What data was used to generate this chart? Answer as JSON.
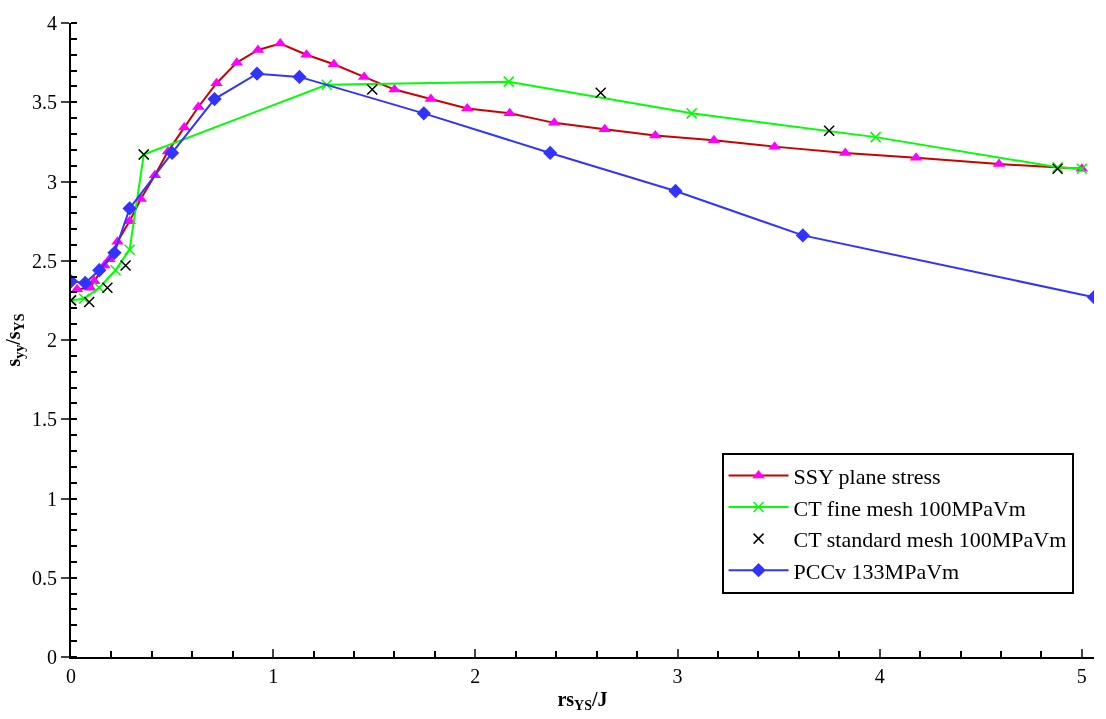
{
  "chart_data": {
    "type": "line",
    "xlabel": "rs$_{YS}$/J",
    "ylabel": "s$_{yy}$/s$_{YS}$",
    "xlim": [
      0,
      5.06
    ],
    "xticks": [
      0,
      1,
      2,
      3,
      4,
      5
    ],
    "ylim": [
      0,
      4
    ],
    "yticks": [
      0,
      0.5,
      1,
      1.5,
      2,
      2.5,
      3,
      3.5,
      4
    ],
    "legend": "bottom right",
    "series": [
      {
        "name": "SSY plane stress",
        "color": "#cc0000",
        "colors": [
          "#ff00ff",
          "#ff00ff",
          "#ff00ff",
          "#ff00ff",
          "#ff00ff",
          "#ff00ff",
          "#ff00ff",
          "#ff00ff",
          "#ff00ff",
          "#ff00ff",
          "#ff00ff",
          "#ff00ff",
          "#ff00ff",
          "#ff00ff",
          "#ff00ff",
          "#ff00ff",
          "#ff00ff",
          "#ff00ff",
          "#ff00ff",
          "#ff00ff",
          "#ff00ff",
          "#ff00ff",
          "#ff00ff",
          "#ff00ff",
          "#ff00ff",
          "#ff00ff",
          "#ff00ff",
          "#ff00ff",
          "#ff00ff",
          "#ff00ff",
          "#ff00ff",
          "#ff00ff"
        ],
        "marker": "triangle",
        "x": [
          0.03,
          0.095,
          0.115,
          0.165,
          0.19,
          0.23,
          0.29,
          0.345,
          0.415,
          0.48,
          0.56,
          0.63,
          0.72,
          0.82,
          0.925,
          1.035,
          1.165,
          1.3,
          1.45,
          1.6,
          1.78,
          1.96,
          2.17,
          2.39,
          2.64,
          2.89,
          3.18,
          3.48,
          3.83,
          4.18,
          4.59,
          5.0
        ],
        "values": [
          2.32,
          2.33,
          2.37,
          2.47,
          2.51,
          2.62,
          2.75,
          2.89,
          3.04,
          3.19,
          3.34,
          3.47,
          3.62,
          3.75,
          3.83,
          3.87,
          3.8,
          3.74,
          3.66,
          3.58,
          3.52,
          3.46,
          3.43,
          3.37,
          3.33,
          3.29,
          3.26,
          3.22,
          3.18,
          3.15,
          3.11,
          3.08
        ]
      },
      {
        "name": "CT fine mesh 100MPaVm",
        "color": "#00ff00",
        "marker": "cross",
        "x": [
          0.0,
          0.065,
          0.14,
          0.22,
          0.29,
          0.36,
          1.265,
          2.165,
          3.07,
          3.98,
          4.88,
          5.0
        ],
        "values": [
          2.25,
          2.26,
          2.33,
          2.44,
          2.57,
          3.17,
          3.61,
          3.63,
          3.43,
          3.28,
          3.09,
          3.08
        ]
      },
      {
        "name": "CT standard mesh 100MPaVm",
        "color": "#000000",
        "marker": "cross",
        "type": "scatter",
        "x": [
          0.0,
          0.09,
          0.18,
          0.27,
          0.36,
          1.49,
          2.62,
          3.75,
          4.88
        ],
        "values": [
          2.25,
          2.24,
          2.33,
          2.47,
          3.17,
          3.58,
          3.56,
          3.32,
          3.08
        ]
      },
      {
        "name": "PCCv 133MPaVm",
        "color": "#3333ff",
        "marker": "diamond",
        "x": [
          0.0,
          0.07,
          0.14,
          0.215,
          0.29,
          0.5,
          0.71,
          0.92,
          1.13,
          1.745,
          2.37,
          2.99,
          3.62,
          5.06
        ],
        "values": [
          2.37,
          2.36,
          2.44,
          2.55,
          2.83,
          3.18,
          3.52,
          3.68,
          3.66,
          3.43,
          3.18,
          2.94,
          2.66,
          2.27
        ]
      }
    ]
  }
}
